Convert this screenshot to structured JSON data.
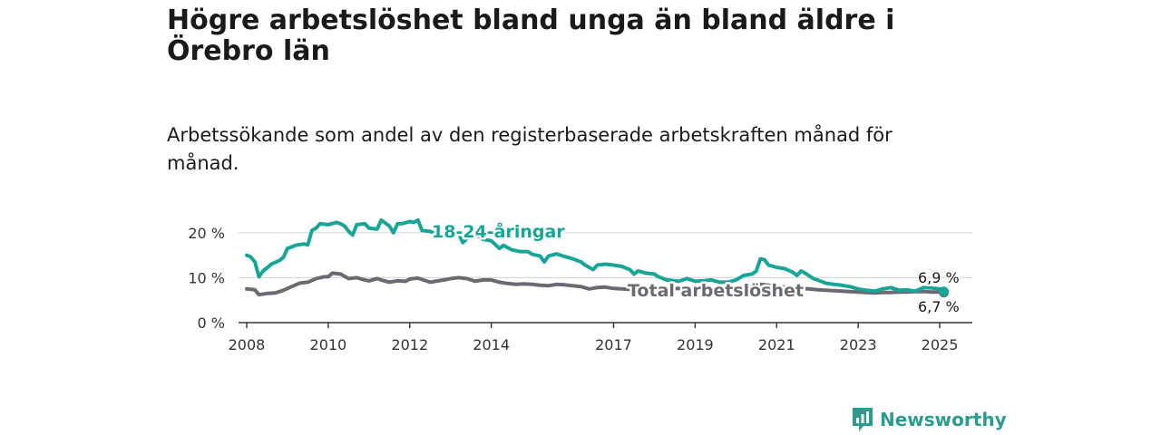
{
  "title": "Högre arbetslöshet bland unga än bland äldre i Örebro län",
  "subtitle": "Arbetssökande som andel av den registerbaserade arbetskraften månad för månad.",
  "brand": {
    "name": "Newsworthy"
  },
  "colors": {
    "youth": "#17a598",
    "total": "#6b6a72",
    "grid": "#d9d9d9",
    "axis": "#333333",
    "brand": "#2a9d8f"
  },
  "chart_data": {
    "type": "line",
    "title": "",
    "xlabel": "",
    "ylabel": "",
    "ylim": [
      0,
      25
    ],
    "xlim": [
      2007.8,
      2025.8
    ],
    "x_ticks": [
      {
        "value": 2008,
        "label": "2008"
      },
      {
        "value": 2010,
        "label": "2010"
      },
      {
        "value": 2012,
        "label": "2012"
      },
      {
        "value": 2014,
        "label": "2014"
      },
      {
        "value": 2017,
        "label": "2017"
      },
      {
        "value": 2019,
        "label": "2019"
      },
      {
        "value": 2021,
        "label": "2021"
      },
      {
        "value": 2023,
        "label": "2023"
      },
      {
        "value": 2025,
        "label": "2025"
      }
    ],
    "y_ticks": [
      {
        "value": 0,
        "label": "0 %"
      },
      {
        "value": 10,
        "label": "10 %"
      },
      {
        "value": 20,
        "label": "20 %"
      }
    ],
    "grid": true,
    "series": [
      {
        "name": "18-24-åringar",
        "color": "#17a598",
        "end_label": "6,9 %",
        "points": [
          [
            2008.0,
            15.0
          ],
          [
            2008.1,
            14.6
          ],
          [
            2008.2,
            13.5
          ],
          [
            2008.3,
            10.2
          ],
          [
            2008.4,
            11.5
          ],
          [
            2008.5,
            12.2
          ],
          [
            2008.6,
            13.0
          ],
          [
            2008.8,
            13.8
          ],
          [
            2008.9,
            14.5
          ],
          [
            2009.0,
            16.5
          ],
          [
            2009.2,
            17.2
          ],
          [
            2009.4,
            17.5
          ],
          [
            2009.5,
            17.3
          ],
          [
            2009.6,
            20.5
          ],
          [
            2009.7,
            21.0
          ],
          [
            2009.8,
            22.0
          ],
          [
            2010.0,
            21.8
          ],
          [
            2010.2,
            22.3
          ],
          [
            2010.3,
            22.0
          ],
          [
            2010.4,
            21.5
          ],
          [
            2010.5,
            20.3
          ],
          [
            2010.6,
            19.5
          ],
          [
            2010.7,
            21.8
          ],
          [
            2010.9,
            22.0
          ],
          [
            2011.0,
            21.0
          ],
          [
            2011.2,
            20.8
          ],
          [
            2011.3,
            22.8
          ],
          [
            2011.5,
            21.5
          ],
          [
            2011.6,
            20.0
          ],
          [
            2011.7,
            22.0
          ],
          [
            2011.8,
            22.0
          ],
          [
            2012.0,
            22.5
          ],
          [
            2012.1,
            22.3
          ],
          [
            2012.2,
            22.8
          ],
          [
            2012.3,
            20.5
          ],
          [
            2012.5,
            20.3
          ],
          [
            2012.7,
            19.5
          ],
          [
            2012.9,
            19.0
          ],
          [
            2013.0,
            19.8
          ],
          [
            2013.2,
            19.8
          ],
          [
            2013.3,
            17.8
          ],
          [
            2013.5,
            19.5
          ],
          [
            2013.6,
            19.8
          ],
          [
            2013.8,
            18.5
          ],
          [
            2014.0,
            18.2
          ],
          [
            2014.2,
            16.5
          ],
          [
            2014.3,
            17.2
          ],
          [
            2014.5,
            16.2
          ],
          [
            2014.7,
            15.8
          ],
          [
            2014.9,
            15.8
          ],
          [
            2015.0,
            15.2
          ],
          [
            2015.2,
            14.8
          ],
          [
            2015.3,
            13.5
          ],
          [
            2015.4,
            14.8
          ],
          [
            2015.6,
            15.3
          ],
          [
            2015.8,
            14.7
          ],
          [
            2016.0,
            14.2
          ],
          [
            2016.2,
            13.5
          ],
          [
            2016.3,
            12.8
          ],
          [
            2016.5,
            11.8
          ],
          [
            2016.6,
            12.8
          ],
          [
            2016.8,
            13.0
          ],
          [
            2017.0,
            12.8
          ],
          [
            2017.2,
            12.5
          ],
          [
            2017.4,
            11.8
          ],
          [
            2017.5,
            10.8
          ],
          [
            2017.6,
            11.5
          ],
          [
            2017.8,
            11.0
          ],
          [
            2018.0,
            10.8
          ],
          [
            2018.1,
            10.2
          ],
          [
            2018.3,
            9.5
          ],
          [
            2018.6,
            9.2
          ],
          [
            2018.8,
            9.8
          ],
          [
            2019.0,
            9.2
          ],
          [
            2019.2,
            9.3
          ],
          [
            2019.4,
            9.5
          ],
          [
            2019.6,
            9.0
          ],
          [
            2019.8,
            9.0
          ],
          [
            2020.0,
            9.5
          ],
          [
            2020.2,
            10.5
          ],
          [
            2020.4,
            10.8
          ],
          [
            2020.5,
            11.5
          ],
          [
            2020.6,
            14.2
          ],
          [
            2020.7,
            14.0
          ],
          [
            2020.8,
            12.8
          ],
          [
            2021.0,
            12.3
          ],
          [
            2021.2,
            12.0
          ],
          [
            2021.4,
            11.2
          ],
          [
            2021.5,
            10.5
          ],
          [
            2021.6,
            11.5
          ],
          [
            2021.7,
            11.0
          ],
          [
            2021.9,
            9.8
          ],
          [
            2022.0,
            9.5
          ],
          [
            2022.2,
            8.8
          ],
          [
            2022.4,
            8.5
          ],
          [
            2022.6,
            8.3
          ],
          [
            2022.8,
            8.0
          ],
          [
            2023.0,
            7.5
          ],
          [
            2023.2,
            7.2
          ],
          [
            2023.4,
            7.0
          ],
          [
            2023.6,
            7.5
          ],
          [
            2023.8,
            7.8
          ],
          [
            2024.0,
            7.2
          ],
          [
            2024.2,
            7.3
          ],
          [
            2024.4,
            7.0
          ],
          [
            2024.6,
            7.8
          ],
          [
            2024.8,
            7.7
          ],
          [
            2025.0,
            7.5
          ],
          [
            2025.1,
            6.9
          ]
        ]
      },
      {
        "name": "Total arbetslöshet",
        "color": "#6b6a72",
        "end_label": "6,7 %",
        "points": [
          [
            2008.0,
            7.5
          ],
          [
            2008.2,
            7.3
          ],
          [
            2008.3,
            6.2
          ],
          [
            2008.5,
            6.5
          ],
          [
            2008.7,
            6.6
          ],
          [
            2008.9,
            7.2
          ],
          [
            2009.1,
            8.0
          ],
          [
            2009.3,
            8.8
          ],
          [
            2009.5,
            9.0
          ],
          [
            2009.7,
            9.8
          ],
          [
            2009.9,
            10.2
          ],
          [
            2010.0,
            10.2
          ],
          [
            2010.1,
            11.0
          ],
          [
            2010.3,
            10.8
          ],
          [
            2010.5,
            9.8
          ],
          [
            2010.7,
            10.0
          ],
          [
            2010.9,
            9.5
          ],
          [
            2011.0,
            9.3
          ],
          [
            2011.2,
            9.8
          ],
          [
            2011.3,
            9.5
          ],
          [
            2011.5,
            9.0
          ],
          [
            2011.7,
            9.3
          ],
          [
            2011.9,
            9.2
          ],
          [
            2012.0,
            9.7
          ],
          [
            2012.2,
            9.9
          ],
          [
            2012.3,
            9.6
          ],
          [
            2012.5,
            9.0
          ],
          [
            2012.7,
            9.3
          ],
          [
            2012.9,
            9.6
          ],
          [
            2013.0,
            9.8
          ],
          [
            2013.2,
            10.0
          ],
          [
            2013.4,
            9.8
          ],
          [
            2013.6,
            9.2
          ],
          [
            2013.8,
            9.5
          ],
          [
            2014.0,
            9.5
          ],
          [
            2014.2,
            9.0
          ],
          [
            2014.4,
            8.7
          ],
          [
            2014.6,
            8.5
          ],
          [
            2014.8,
            8.6
          ],
          [
            2015.0,
            8.5
          ],
          [
            2015.2,
            8.3
          ],
          [
            2015.4,
            8.2
          ],
          [
            2015.6,
            8.5
          ],
          [
            2015.8,
            8.4
          ],
          [
            2016.0,
            8.2
          ],
          [
            2016.2,
            8.0
          ],
          [
            2016.4,
            7.5
          ],
          [
            2016.6,
            7.8
          ],
          [
            2016.8,
            7.9
          ],
          [
            2017.0,
            7.6
          ],
          [
            2017.2,
            7.5
          ],
          [
            2017.4,
            7.4
          ],
          [
            2017.6,
            7.5
          ],
          [
            2017.8,
            7.6
          ],
          [
            2018.0,
            7.5
          ],
          [
            2018.2,
            7.4
          ],
          [
            2018.4,
            7.5
          ],
          [
            2018.6,
            7.6
          ],
          [
            2018.8,
            7.5
          ],
          [
            2019.0,
            7.4
          ],
          [
            2019.2,
            7.5
          ],
          [
            2019.4,
            7.6
          ],
          [
            2019.6,
            7.5
          ],
          [
            2019.8,
            7.6
          ],
          [
            2020.0,
            7.8
          ],
          [
            2020.2,
            8.0
          ],
          [
            2020.4,
            8.2
          ],
          [
            2020.6,
            8.5
          ],
          [
            2020.8,
            8.3
          ],
          [
            2021.0,
            8.0
          ],
          [
            2021.2,
            7.9
          ],
          [
            2021.4,
            7.8
          ],
          [
            2021.6,
            7.6
          ],
          [
            2021.8,
            7.5
          ],
          [
            2022.0,
            7.3
          ],
          [
            2022.2,
            7.2
          ],
          [
            2022.4,
            7.1
          ],
          [
            2022.6,
            7.0
          ],
          [
            2022.8,
            6.9
          ],
          [
            2023.0,
            6.8
          ],
          [
            2023.2,
            6.7
          ],
          [
            2023.4,
            6.6
          ],
          [
            2023.6,
            6.7
          ],
          [
            2023.8,
            6.7
          ],
          [
            2024.0,
            6.8
          ],
          [
            2024.2,
            6.8
          ],
          [
            2024.4,
            6.9
          ],
          [
            2024.6,
            6.9
          ],
          [
            2024.8,
            6.8
          ],
          [
            2025.0,
            6.8
          ],
          [
            2025.1,
            6.7
          ]
        ]
      }
    ]
  }
}
